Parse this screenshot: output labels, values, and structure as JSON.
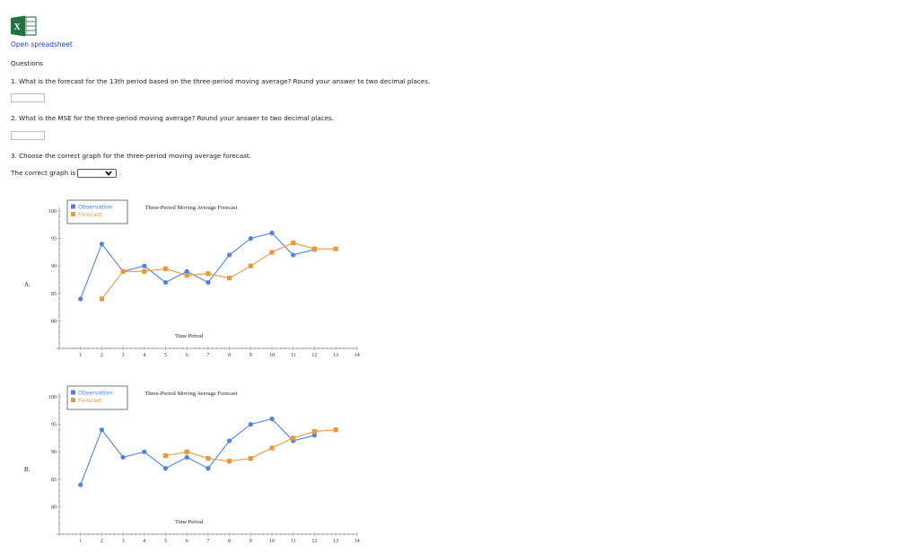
{
  "header": {
    "icon": "excel-spreadsheet-icon",
    "link_label": "Open spreadsheet"
  },
  "questions": {
    "heading": "Questions",
    "q1": {
      "text": "1. What is the forecast for the 13th period based on the three-period moving average? Round your answer to two decimal places.",
      "value": ""
    },
    "q2": {
      "text": "2. What is the MSE for the three-period moving average? Round your answer to two decimal places.",
      "value": ""
    },
    "q3": {
      "text": "3. Choose the correct graph for the three-period moving average forecast.",
      "answer_prefix": "The correct graph is",
      "answer_suffix": ".",
      "selected": ""
    }
  },
  "colors": {
    "observation": "#4f7ff0",
    "forecast": "#f0963a",
    "link": "#1a3fcf"
  },
  "chart_data": [
    {
      "option_label": "A.",
      "type": "line",
      "title": "Three-Period Moving Average Forecast",
      "xlabel": "Time Period",
      "ylabel": "",
      "x_ticks": [
        1,
        2,
        3,
        4,
        5,
        6,
        7,
        8,
        9,
        10,
        11,
        12,
        13,
        14
      ],
      "y_ticks": [
        80,
        85,
        90,
        95,
        100
      ],
      "xlim": [
        0,
        14
      ],
      "ylim": [
        75,
        100
      ],
      "legend": [
        "Observation",
        "Forecast"
      ],
      "legend_position": "top-left",
      "series": [
        {
          "name": "Observation",
          "marker": "circle",
          "x": [
            1,
            2,
            3,
            4,
            5,
            6,
            7,
            8,
            9,
            10,
            11,
            12
          ],
          "values": [
            84,
            94,
            89,
            90,
            87,
            89,
            87,
            92,
            95,
            96,
            92,
            93
          ]
        },
        {
          "name": "Forecast",
          "marker": "square",
          "x": [
            2,
            3,
            4,
            5,
            6,
            7,
            8,
            9,
            10,
            11,
            12,
            13
          ],
          "values": [
            84,
            89,
            89,
            89.5,
            88.3,
            88.6,
            87.8,
            90,
            92.5,
            94.2,
            93.1,
            93.1
          ]
        }
      ]
    },
    {
      "option_label": "B.",
      "type": "line",
      "title": "Three-Period Moving Average Forecast",
      "xlabel": "Time Period",
      "ylabel": "",
      "x_ticks": [
        1,
        2,
        3,
        4,
        5,
        6,
        7,
        8,
        9,
        10,
        11,
        12,
        13,
        14
      ],
      "y_ticks": [
        80,
        85,
        90,
        95,
        100
      ],
      "xlim": [
        0,
        14
      ],
      "ylim": [
        75,
        100
      ],
      "legend": [
        "Observation",
        "Forecast"
      ],
      "legend_position": "top-left",
      "series": [
        {
          "name": "Observation",
          "marker": "circle",
          "x": [
            1,
            2,
            3,
            4,
            5,
            6,
            7,
            8,
            9,
            10,
            11,
            12
          ],
          "values": [
            84,
            94,
            89,
            90,
            87,
            89,
            87,
            92,
            95,
            96,
            92,
            93
          ]
        },
        {
          "name": "Forecast",
          "marker": "square",
          "x": [
            5,
            6,
            7,
            8,
            9,
            10,
            11,
            12,
            13
          ],
          "values": [
            89.3,
            90,
            88.8,
            88.3,
            88.8,
            90.7,
            92.5,
            93.7,
            94
          ]
        }
      ]
    }
  ]
}
